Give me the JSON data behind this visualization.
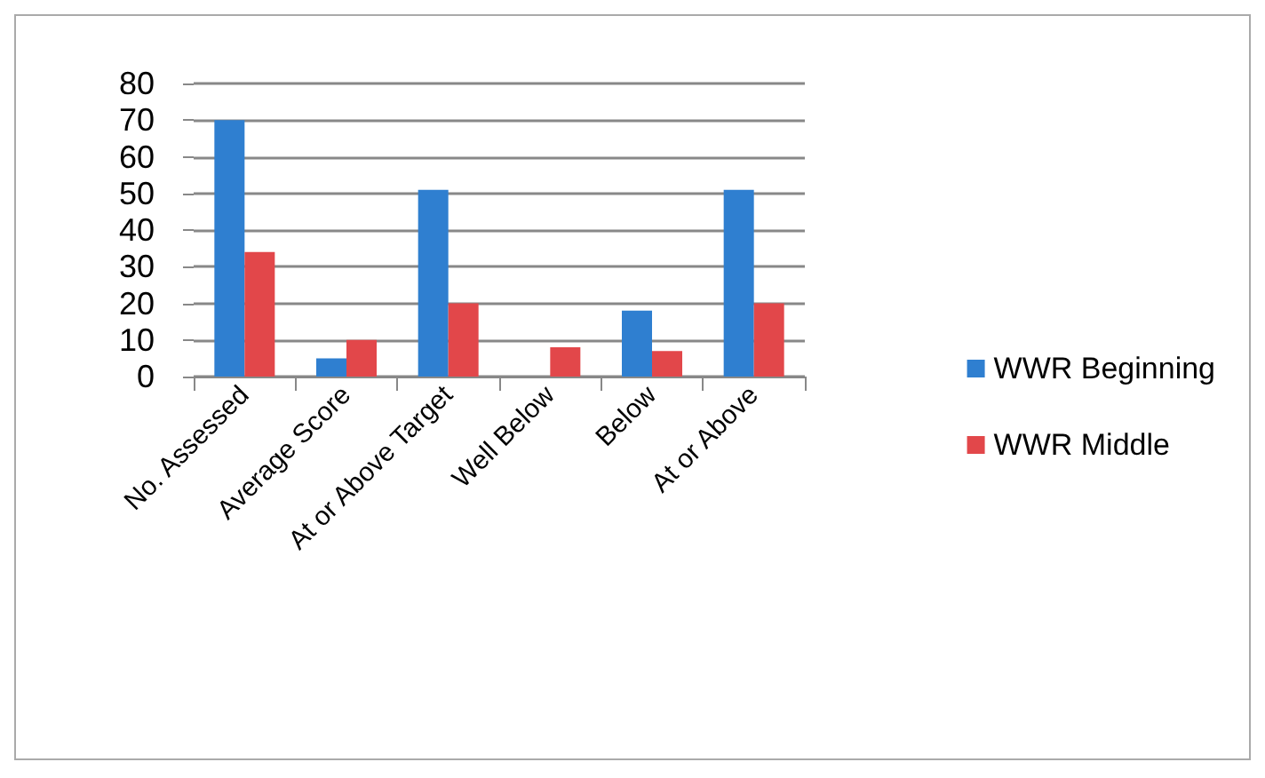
{
  "chart_data": {
    "type": "bar",
    "categories": [
      "No. Assessed",
      "Average Score",
      "At or Above Target",
      "Well Below",
      "Below",
      "At or Above"
    ],
    "series": [
      {
        "name": "WWR Beginning",
        "color": "#2f7fd0",
        "values": [
          70,
          5,
          51,
          0,
          18,
          51
        ]
      },
      {
        "name": "WWR Middle",
        "color": "#e2474a",
        "values": [
          34,
          10,
          20,
          8,
          7,
          20
        ]
      }
    ],
    "ylim": [
      0,
      80
    ],
    "yticks": [
      0,
      10,
      20,
      30,
      40,
      50,
      60,
      70,
      80
    ],
    "grid": "y",
    "legend": "right"
  }
}
